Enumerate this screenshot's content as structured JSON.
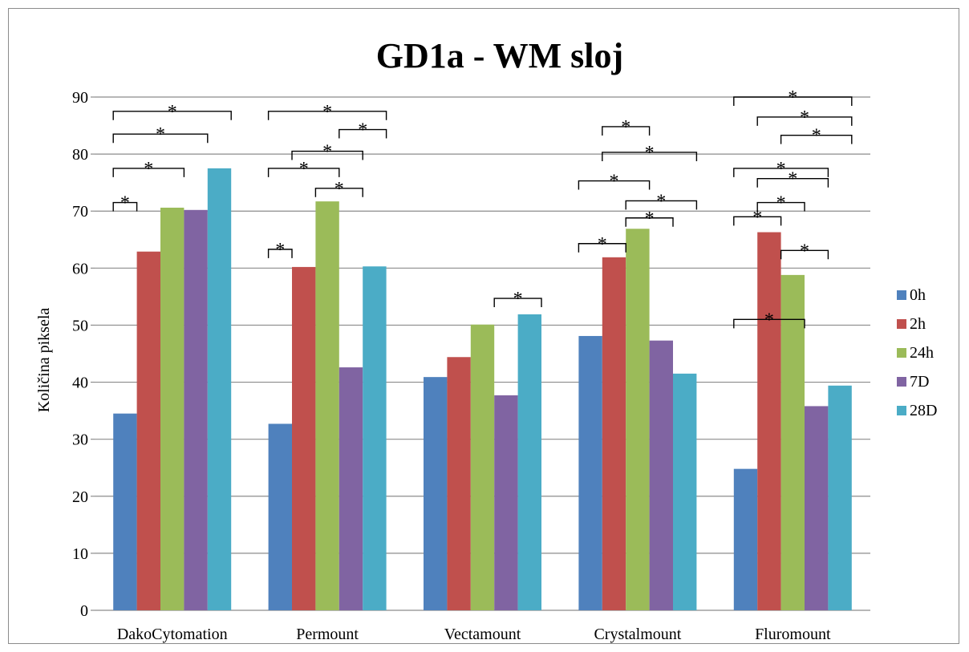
{
  "chart_data": {
    "type": "bar",
    "title": "GD1a - WM sloj",
    "xlabel": "",
    "ylabel": "Količina piksela",
    "ylim": [
      0,
      90
    ],
    "yticks": [
      0,
      10,
      20,
      30,
      40,
      50,
      60,
      70,
      80,
      90
    ],
    "grid": true,
    "legend_position": "right",
    "categories": [
      "DakoCytomation",
      "Permount",
      "Vectamount",
      "Crystalmount",
      "Fluromount"
    ],
    "series": [
      {
        "name": "0h",
        "color": "#4f81bd",
        "values": [
          34.5,
          32.7,
          40.9,
          48.1,
          24.8
        ]
      },
      {
        "name": "2h",
        "color": "#c0504d",
        "values": [
          62.9,
          60.2,
          44.4,
          61.9,
          66.3
        ]
      },
      {
        "name": "24h",
        "color": "#9bbb59",
        "values": [
          70.6,
          71.7,
          50.1,
          66.9,
          58.8
        ]
      },
      {
        "name": "7D",
        "color": "#8064a2",
        "values": [
          70.2,
          42.6,
          37.7,
          47.3,
          35.8
        ]
      },
      {
        "name": "28D",
        "color": "#4bacc6",
        "values": [
          77.5,
          60.3,
          51.9,
          41.5,
          39.4
        ]
      }
    ],
    "annotations": {
      "marker": "*",
      "brackets": [
        {
          "category": 0,
          "from": 0,
          "to": 1,
          "level": 71.5
        },
        {
          "category": 0,
          "from": 0,
          "to": 3,
          "level": 77.5
        },
        {
          "category": 0,
          "from": 0,
          "to": 4,
          "level": 83.5
        },
        {
          "category": 0,
          "from": 0,
          "to": 5,
          "level": 87.5
        },
        {
          "category": 1,
          "from": 0,
          "to": 1,
          "level": 63.3
        },
        {
          "category": 1,
          "from": 0,
          "to": 3,
          "level": 77.5
        },
        {
          "category": 1,
          "from": 0,
          "to": 5,
          "level": 87.5
        },
        {
          "category": 1,
          "from": 1,
          "to": 4,
          "level": 80.5
        },
        {
          "category": 1,
          "from": 2,
          "to": 4,
          "level": 74.0
        },
        {
          "category": 1,
          "from": 3,
          "to": 5,
          "level": 84.3
        },
        {
          "category": 2,
          "from": 3,
          "to": 5,
          "level": 54.7
        },
        {
          "category": 3,
          "from": 0,
          "to": 2,
          "level": 64.3
        },
        {
          "category": 3,
          "from": 0,
          "to": 3,
          "level": 75.3
        },
        {
          "category": 3,
          "from": 1,
          "to": 5,
          "level": 80.3
        },
        {
          "category": 3,
          "from": 1,
          "to": 3,
          "level": 84.8
        },
        {
          "category": 3,
          "from": 2,
          "to": 5,
          "level": 71.8
        },
        {
          "category": 3,
          "from": 2,
          "to": 4,
          "level": 68.8
        },
        {
          "category": 4,
          "from": 0,
          "to": 2,
          "level": 69.0
        },
        {
          "category": 4,
          "from": 0,
          "to": 4,
          "level": 77.5
        },
        {
          "category": 4,
          "from": 1,
          "to": 4,
          "level": 75.7
        },
        {
          "category": 4,
          "from": 1,
          "to": 3,
          "level": 71.5
        },
        {
          "category": 4,
          "from": 2,
          "to": 4,
          "level": 63.1
        },
        {
          "category": 4,
          "from": 0,
          "to": 3,
          "level": 51.0
        },
        {
          "category": 4,
          "from": 0,
          "to": 5,
          "level": 90.0
        },
        {
          "category": 4,
          "from": 1,
          "to": 5,
          "level": 86.5
        },
        {
          "category": 4,
          "from": 2,
          "to": 5,
          "level": 83.3
        }
      ]
    }
  }
}
